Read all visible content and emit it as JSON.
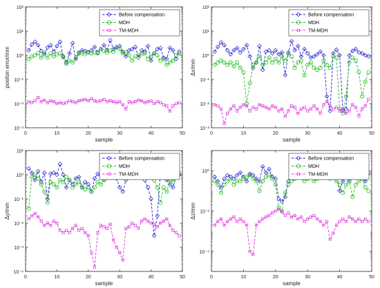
{
  "chart_data": [
    {
      "type": "line",
      "yscale": "log",
      "ylim": [
        0.001,
        100
      ],
      "xlim": [
        0,
        50
      ],
      "xticks": [
        0,
        10,
        20,
        30,
        40,
        50
      ],
      "ytick_labels": [
        "10⁻³",
        "10⁻²",
        "10⁻¹",
        "10⁰",
        "10¹",
        "10²"
      ],
      "ytick_values": [
        0.001,
        0.01,
        0.1,
        1,
        10,
        100
      ],
      "xlabel": "sample",
      "ylabel": "positon error/mm",
      "legend_position": "top-right",
      "grid": false,
      "series": [
        {
          "name": "Before compensation",
          "color": "#1f1fd0",
          "marker": "diamond",
          "values": [
            1.6,
            2.8,
            3.6,
            2.6,
            1.5,
            1.1,
            2.1,
            2.6,
            1.4,
            2.4,
            3.6,
            0.9,
            0.5,
            1.2,
            3.2,
            0.7,
            1.2,
            1.6,
            1.5,
            1.3,
            1.6,
            2.2,
            1.3,
            1.8,
            2.6,
            1.6,
            4.2,
            1.8,
            2.2,
            2.4,
            1.4,
            0.9,
            1.6,
            1.8,
            2.2,
            0.8,
            1.6,
            1.4,
            2.4,
            0.6,
            1.2,
            1.8,
            2.0,
            0.8,
            0.7,
            2.0,
            1.6,
            0.7,
            1.4
          ]
        },
        {
          "name": "MDH",
          "color": "#22bb22",
          "marker": "circle",
          "values": [
            0.7,
            0.9,
            1.0,
            1.2,
            0.8,
            1.3,
            0.8,
            1.2,
            0.9,
            1.1,
            1.2,
            0.8,
            0.45,
            0.6,
            0.5,
            0.8,
            1.3,
            1.2,
            1.1,
            1.4,
            1.2,
            1.3,
            1.2,
            1.8,
            1.5,
            1.3,
            1.6,
            1.4,
            2.1,
            1.8,
            1.2,
            1.3,
            1.0,
            0.6,
            0.9,
            1.0,
            1.1,
            1.2,
            0.7,
            0.9,
            1.2,
            1.0,
            0.6,
            0.7,
            0.4,
            0.5,
            0.6,
            1.0,
            1.2
          ]
        },
        {
          "name": "TM-MDH",
          "color": "#dd33dd",
          "marker": "square",
          "values": [
            0.012,
            0.011,
            0.013,
            0.018,
            0.012,
            0.014,
            0.011,
            0.013,
            0.012,
            0.01,
            0.011,
            0.01,
            0.011,
            0.013,
            0.012,
            0.011,
            0.013,
            0.014,
            0.015,
            0.013,
            0.016,
            0.013,
            0.012,
            0.013,
            0.015,
            0.012,
            0.013,
            0.012,
            0.011,
            0.012,
            0.009,
            0.006,
            0.012,
            0.011,
            0.012,
            0.014,
            0.013,
            0.011,
            0.012,
            0.013,
            0.01,
            0.012,
            0.011,
            0.009,
            0.008,
            0.005,
            0.008,
            0.01,
            0.011
          ]
        }
      ]
    },
    {
      "type": "line",
      "yscale": "log",
      "ylim": [
        0.001,
        100
      ],
      "xlim": [
        0,
        50
      ],
      "xticks": [
        0,
        10,
        20,
        30,
        40,
        50
      ],
      "ytick_labels": [
        "10⁻³",
        "10⁻²",
        "10⁻¹",
        "10⁰",
        "10¹",
        "10²"
      ],
      "ytick_values": [
        0.001,
        0.01,
        0.1,
        1,
        10,
        100
      ],
      "xlabel": "sample",
      "ylabel": "Δx/mm",
      "legend_position": "top-right",
      "grid": false,
      "series": [
        {
          "name": "Before compensation",
          "color": "#1f1fd0",
          "marker": "diamond",
          "values": [
            1.4,
            2.2,
            3.4,
            2.6,
            1.6,
            1.1,
            1.6,
            2.0,
            1.3,
            1.8,
            2.6,
            0.9,
            0.3,
            0.5,
            2.4,
            0.25,
            1.4,
            1.6,
            1.2,
            1.6,
            1.1,
            1.3,
            0.15,
            1.3,
            3.8,
            1.6,
            2.4,
            0.9,
            1.8,
            1.2,
            0.8,
            0.9,
            1.1,
            1.4,
            1.0,
            0.02,
            0.005,
            1.2,
            1.7,
            1.0,
            0.005,
            0.006,
            1.0,
            1.5,
            1.8,
            1.3,
            1.2,
            1.0,
            0.9
          ]
        },
        {
          "name": "MDH",
          "color": "#22bb22",
          "marker": "circle",
          "values": [
            0.4,
            0.5,
            0.6,
            0.5,
            0.4,
            0.5,
            0.35,
            0.5,
            0.3,
            0.2,
            0.01,
            0.07,
            0.4,
            0.5,
            0.9,
            0.4,
            0.5,
            0.8,
            0.5,
            0.7,
            0.5,
            0.9,
            0.6,
            1.2,
            0.9,
            0.3,
            0.5,
            0.6,
            0.15,
            0.4,
            0.5,
            0.3,
            0.25,
            0.3,
            0.6,
            0.4,
            0.3,
            0.9,
            0.8,
            0.006,
            0.004,
            0.02,
            0.5,
            0.8,
            0.6,
            0.2,
            0.02,
            0.08,
            0.2
          ]
        },
        {
          "name": "TM-MDH",
          "color": "#dd33dd",
          "marker": "square",
          "values": [
            0.009,
            0.008,
            0.006,
            0.0015,
            0.004,
            0.006,
            0.008,
            0.005,
            0.007,
            0.009,
            0.008,
            0.005,
            0.007,
            0.006,
            0.009,
            0.008,
            0.007,
            0.006,
            0.008,
            0.007,
            0.005,
            0.006,
            0.003,
            0.005,
            0.008,
            0.007,
            0.004,
            0.006,
            0.007,
            0.005,
            0.006,
            0.008,
            0.006,
            0.004,
            0.009,
            0.012,
            0.008,
            0.006,
            0.007,
            0.005,
            0.006,
            0.004,
            0.005,
            0.009,
            0.007,
            0.003,
            0.006,
            0.008,
            0.015
          ]
        }
      ]
    },
    {
      "type": "line",
      "yscale": "log",
      "ylim": [
        0.0001,
        10
      ],
      "xlim": [
        0,
        50
      ],
      "xticks": [
        0,
        10,
        20,
        30,
        40,
        50
      ],
      "ytick_labels": [
        "10⁻⁴",
        "10⁻³",
        "10⁻²",
        "10⁻¹",
        "10⁰",
        "10¹"
      ],
      "ytick_values": [
        0.0001,
        0.001,
        0.01,
        0.1,
        1,
        10
      ],
      "xlabel": "sample",
      "ylabel": "Δy/mm",
      "legend_position": "top-right",
      "grid": false,
      "series": [
        {
          "name": "Before compensation",
          "color": "#1f1fd0",
          "marker": "diamond",
          "values": [
            1.8,
            1.2,
            0.6,
            1.4,
            0.5,
            1.2,
            0.1,
            1.1,
            1.2,
            1.0,
            2.8,
            1.0,
            0.3,
            0.6,
            0.4,
            0.7,
            0.8,
            0.3,
            0.5,
            0.4,
            0.2,
            0.7,
            1.1,
            0.9,
            0.6,
            0.9,
            1.3,
            1.4,
            0.7,
            0.3,
            0.2,
            0.6,
            0.8,
            1.4,
            1.1,
            0.8,
            1.2,
            0.6,
            0.3,
            0.1,
            0.003,
            0.02,
            1.2,
            1.5,
            0.6,
            0.4,
            0.3,
            0.8,
            1.0
          ]
        },
        {
          "name": "MDH",
          "color": "#22bb22",
          "marker": "circle",
          "values": [
            0.04,
            0.8,
            1.0,
            0.7,
            0.4,
            0.2,
            0.07,
            0.5,
            0.4,
            0.3,
            0.6,
            0.5,
            0.8,
            0.6,
            0.3,
            0.4,
            0.5,
            0.3,
            0.25,
            0.3,
            0.2,
            0.3,
            0.5,
            0.4,
            0.6,
            0.8,
            1.1,
            1.6,
            1.2,
            1.3,
            0.9,
            0.8,
            1.0,
            1.1,
            0.9,
            1.3,
            1.4,
            1.1,
            1.0,
            0.8,
            0.6,
            0.3,
            0.07,
            0.3,
            0.2,
            0.6,
            0.5,
            0.8,
            1.2
          ]
        },
        {
          "name": "TM-MDH",
          "color": "#dd33dd",
          "marker": "square",
          "values": [
            0.015,
            0.02,
            0.025,
            0.018,
            0.012,
            0.008,
            0.01,
            0.008,
            0.012,
            0.01,
            0.005,
            0.004,
            0.005,
            0.004,
            0.006,
            0.008,
            0.005,
            0.006,
            0.004,
            0.003,
            0.0006,
            0.00015,
            0.004,
            0.008,
            0.007,
            0.006,
            0.009,
            0.002,
            0.001,
            0.0006,
            0.0003,
            0.006,
            0.007,
            0.01,
            0.008,
            0.006,
            0.012,
            0.015,
            0.012,
            0.01,
            0.009,
            0.007,
            0.01,
            0.012,
            0.015,
            0.008,
            0.005,
            0.004,
            0.003
          ]
        }
      ]
    },
    {
      "type": "line",
      "yscale": "log",
      "ylim": [
        1e-05,
        10
      ],
      "xlim": [
        0,
        50
      ],
      "xticks": [
        0,
        10,
        20,
        30,
        40,
        50
      ],
      "ytick_labels": [
        "10⁻⁴",
        "10⁻²",
        "10⁰"
      ],
      "ytick_values": [
        0.0001,
        0.01,
        1
      ],
      "xlabel": "sample",
      "ylabel": "Δz/mm",
      "legend_position": "top-right",
      "grid": false,
      "series": [
        {
          "name": "Before compensation",
          "color": "#1f1fd0",
          "marker": "diamond",
          "values": [
            0.5,
            0.3,
            0.15,
            0.4,
            0.6,
            0.5,
            0.4,
            0.6,
            0.8,
            0.5,
            0.3,
            0.7,
            0.6,
            0.4,
            0.3,
            1.6,
            0.8,
            1.2,
            0.5,
            0.4,
            0.04,
            0.03,
            0.05,
            0.3,
            0.6,
            0.8,
            1.1,
            0.9,
            0.6,
            1.2,
            0.8,
            0.5,
            0.9,
            1.1,
            0.7,
            1.2,
            2.0,
            0.9,
            0.5,
            0.1,
            0.3,
            0.6,
            0.3,
            0.5,
            0.8,
            0.7,
            0.6,
            0.3,
            0.7
          ]
        },
        {
          "name": "MDH",
          "color": "#22bb22",
          "marker": "circle",
          "values": [
            0.3,
            0.2,
            0.08,
            0.2,
            0.3,
            0.4,
            0.2,
            0.3,
            0.3,
            0.4,
            0.5,
            0.6,
            0.4,
            0.3,
            0.1,
            0.3,
            0.5,
            0.6,
            0.4,
            0.2,
            0.015,
            0.01,
            0.08,
            0.2,
            0.3,
            0.4,
            0.5,
            0.6,
            0.3,
            0.4,
            0.5,
            0.3,
            0.4,
            0.5,
            0.8,
            0.6,
            0.4,
            0.5,
            0.3,
            0.2,
            0.08,
            0.2,
            0.3,
            0.05,
            0.2,
            0.3,
            0.4,
            0.15,
            0.1
          ]
        },
        {
          "name": "TM-MDH",
          "color": "#dd33dd",
          "marker": "square",
          "values": [
            0.002,
            0.003,
            0.004,
            0.002,
            0.003,
            0.004,
            0.005,
            0.003,
            0.004,
            0.003,
            0.002,
            0.0001,
            7e-05,
            0.002,
            0.003,
            0.004,
            0.005,
            0.006,
            0.008,
            0.01,
            0.012,
            0.009,
            0.006,
            0.008,
            0.005,
            0.006,
            0.004,
            0.005,
            0.003,
            0.004,
            0.005,
            0.006,
            0.004,
            0.003,
            0.002,
            0.003,
            0.0004,
            0.0008,
            0.002,
            0.003,
            0.004,
            0.003,
            0.005,
            0.004,
            0.003,
            0.004,
            0.003,
            0.004,
            0.003
          ]
        }
      ]
    }
  ]
}
